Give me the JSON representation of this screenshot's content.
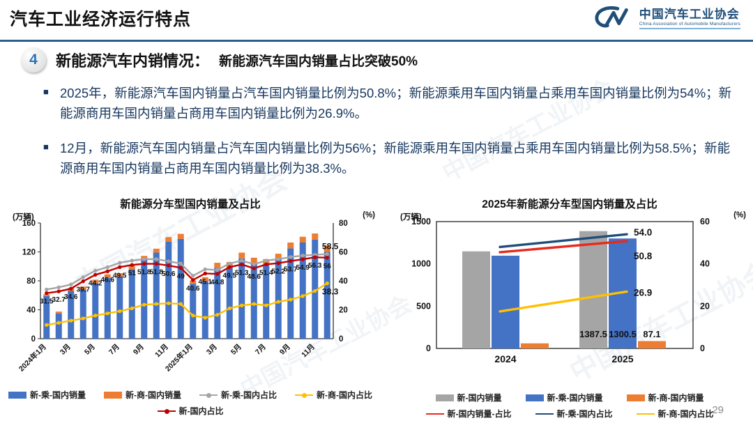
{
  "header": {
    "title": "汽车工业经济运行特点",
    "logo": {
      "org_cn": "中国汽车工业协会",
      "org_en": "China Association of Automobile Manufacturers"
    }
  },
  "section": {
    "badge": "4",
    "heading": "新能源汽车内销情况：",
    "subheading": "新能源汽车国内销量占比突破50%"
  },
  "bullets": [
    {
      "text": "2025年，新能源汽车国内销量占汽车国内销量比例为50.8%；新能源乘用车国内销量占乘用车国内销量比例为54%；新能源商用车国内销量占商用车国内销量比例为26.9%。"
    },
    {
      "text": "12月，新能源汽车国内销量占汽车国内销量比例为56%；新能源乘用车国内销量占乘用车国内销量比例为58.5%；新能源商用车国内销量占商用车国内销量比例为38.3%。"
    }
  ],
  "watermark": "中国汽车工业协会",
  "page_number": "29",
  "chart_data": [
    {
      "type": "bar",
      "subtype": "stacked-bar-with-lines",
      "title": "新能源分车型国内销量及占比",
      "left_axis": {
        "label": "(万辆)",
        "ticks": [
          0,
          40,
          80,
          120,
          160
        ],
        "max": 160
      },
      "right_axis": {
        "label": "(%)",
        "ticks": [
          0,
          20,
          40,
          60,
          80
        ],
        "max": 80
      },
      "categories": [
        "2024年1月",
        "2月",
        "3月",
        "4月",
        "5月",
        "6月",
        "7月",
        "8月",
        "9月",
        "10月",
        "11月",
        "12月",
        "2025年1月",
        "2月",
        "3月",
        "4月",
        "5月",
        "6月",
        "7月",
        "8月",
        "9月",
        "10月",
        "11月",
        "12月"
      ],
      "x_tick_labels": [
        "2024年1月",
        "3月",
        "5月",
        "7月",
        "9月",
        "11月",
        "2025年1月",
        "3月",
        "5月",
        "7月",
        "9月",
        "11月"
      ],
      "series": [
        {
          "name": "新-乘-国内销量",
          "type": "bar",
          "axis": "left",
          "color": "#4472C4",
          "values": [
            59,
            35,
            66,
            68,
            77,
            84,
            86,
            96,
            109,
            119,
            134,
            138,
            76,
            80,
            98,
            99,
            111,
            104,
            103,
            110,
            125,
            133,
            137,
            120
          ]
        },
        {
          "name": "新-商-国内销量",
          "type": "bar",
          "axis": "left",
          "color": "#ED7D31",
          "values": [
            2.5,
            2.5,
            4,
            4,
            4.5,
            5,
            4.5,
            5,
            5.5,
            5.5,
            6.5,
            7,
            4.5,
            5,
            7,
            7,
            8,
            8,
            7,
            7.5,
            8,
            8,
            8.5,
            8.6
          ]
        },
        {
          "name": "新-乘-国内占比",
          "type": "line",
          "axis": "right",
          "color": "#A5A5A5",
          "values": [
            34,
            35.5,
            37.5,
            42.5,
            47,
            49.5,
            52.5,
            54,
            55,
            55,
            53.5,
            52,
            43.5,
            48,
            47.5,
            52,
            54,
            51.5,
            54,
            55,
            56.5,
            57.5,
            58,
            58.5
          ],
          "end_label": "58.5"
        },
        {
          "name": "新-商-国内占比",
          "type": "line",
          "axis": "right",
          "color": "#FFC000",
          "values": [
            9.5,
            11,
            12.5,
            14,
            16,
            17.5,
            19,
            21,
            23.5,
            24,
            24.5,
            24,
            16,
            14.5,
            16.5,
            21,
            23,
            24,
            23,
            25.5,
            27,
            29.5,
            33,
            38.3
          ],
          "end_label": "38.3"
        },
        {
          "name": "新-国内占比",
          "type": "line",
          "axis": "right",
          "color": "#C00000",
          "values": [
            31.5,
            32.7,
            34.6,
            39.7,
            44.2,
            46.6,
            49.5,
            51,
            51.8,
            51.8,
            50.6,
            49,
            40.6,
            45.1,
            44.8,
            49.5,
            51.3,
            48.6,
            51.4,
            52.2,
            53.7,
            54.9,
            56.3,
            56
          ],
          "point_labels": [
            "31.5",
            "32.7",
            "34.6",
            "39.7",
            "44.2",
            "46.6",
            "49.5",
            "51",
            "51.8",
            "51.8",
            "50.6",
            "49",
            "40.6",
            "45.1",
            "44.8",
            "49.5",
            "51.3",
            "48.6",
            "51.4",
            "52.2",
            "53.7",
            "54.9",
            "56.3",
            "56"
          ]
        }
      ]
    },
    {
      "type": "bar",
      "subtype": "grouped-bar-with-lines",
      "title": "2025年新能源分车型国内销量及占比",
      "left_axis": {
        "label": "(万辆)",
        "ticks": [
          0,
          500,
          1000,
          1500
        ],
        "max": 1500
      },
      "right_axis": {
        "label": "(%)",
        "ticks": [
          0,
          20,
          40,
          60
        ],
        "max": 60
      },
      "categories": [
        "2024",
        "2025"
      ],
      "bar_series": [
        {
          "name": "新-国内销量",
          "color": "#A5A5A5",
          "values": [
            1148,
            1387.5
          ],
          "labels": [
            null,
            "1387.5"
          ]
        },
        {
          "name": "新-乘-国内销量",
          "color": "#4472C4",
          "values": [
            1097,
            1300.5
          ],
          "labels": [
            null,
            "1300.5"
          ]
        },
        {
          "name": "新-商-国内销量",
          "color": "#ED7D31",
          "values": [
            60,
            87.1
          ],
          "labels": [
            null,
            "87.1"
          ]
        }
      ],
      "line_series": [
        {
          "name": "新-国内销量-占比",
          "color": "#E8291C",
          "values": [
            45.5,
            50.8
          ],
          "end_label": "50.8"
        },
        {
          "name": "新-乘-国内占比",
          "color": "#1F4E79",
          "values": [
            48,
            54.0
          ],
          "end_label": "54.0"
        },
        {
          "name": "新-商-国内占比",
          "color": "#FFC000",
          "values": [
            17.5,
            26.9
          ],
          "end_label": "26.9"
        }
      ]
    }
  ]
}
